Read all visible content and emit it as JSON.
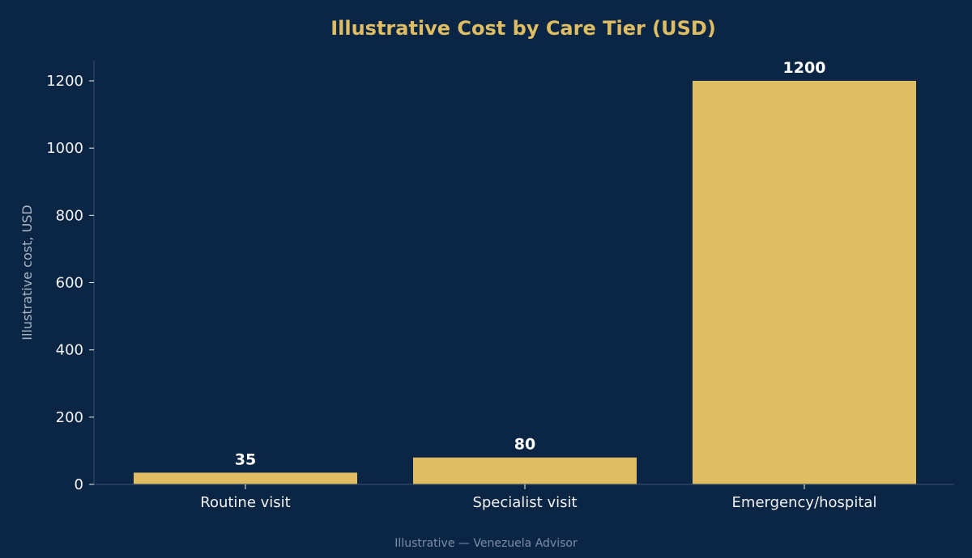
{
  "colors": {
    "background": "#0b2545",
    "bar": "#dfbd62",
    "title": "#dfbd62",
    "tick_text": "#f2f2f2",
    "axis_label": "#aab7c6",
    "data_label": "#ffffff",
    "axis_line": "#33496a",
    "footer": "#7d8ea6"
  },
  "chart_data": {
    "type": "bar",
    "title": "Illustrative Cost by Care Tier (USD)",
    "xlabel": "",
    "ylabel": "Illustrative cost, USD",
    "categories": [
      "Routine visit",
      "Specialist visit",
      "Emergency/hospital"
    ],
    "values": [
      35,
      80,
      1200
    ],
    "data_labels": [
      "35",
      "80",
      "1200"
    ],
    "ylim": [
      0,
      1260
    ],
    "yticks": [
      0,
      200,
      400,
      600,
      800,
      1000,
      1200
    ],
    "ytick_labels": [
      "0",
      "200",
      "400",
      "600",
      "800",
      "1000",
      "1200"
    ],
    "grid": false,
    "legend": "none"
  },
  "footer": "Illustrative — Venezuela Advisor"
}
